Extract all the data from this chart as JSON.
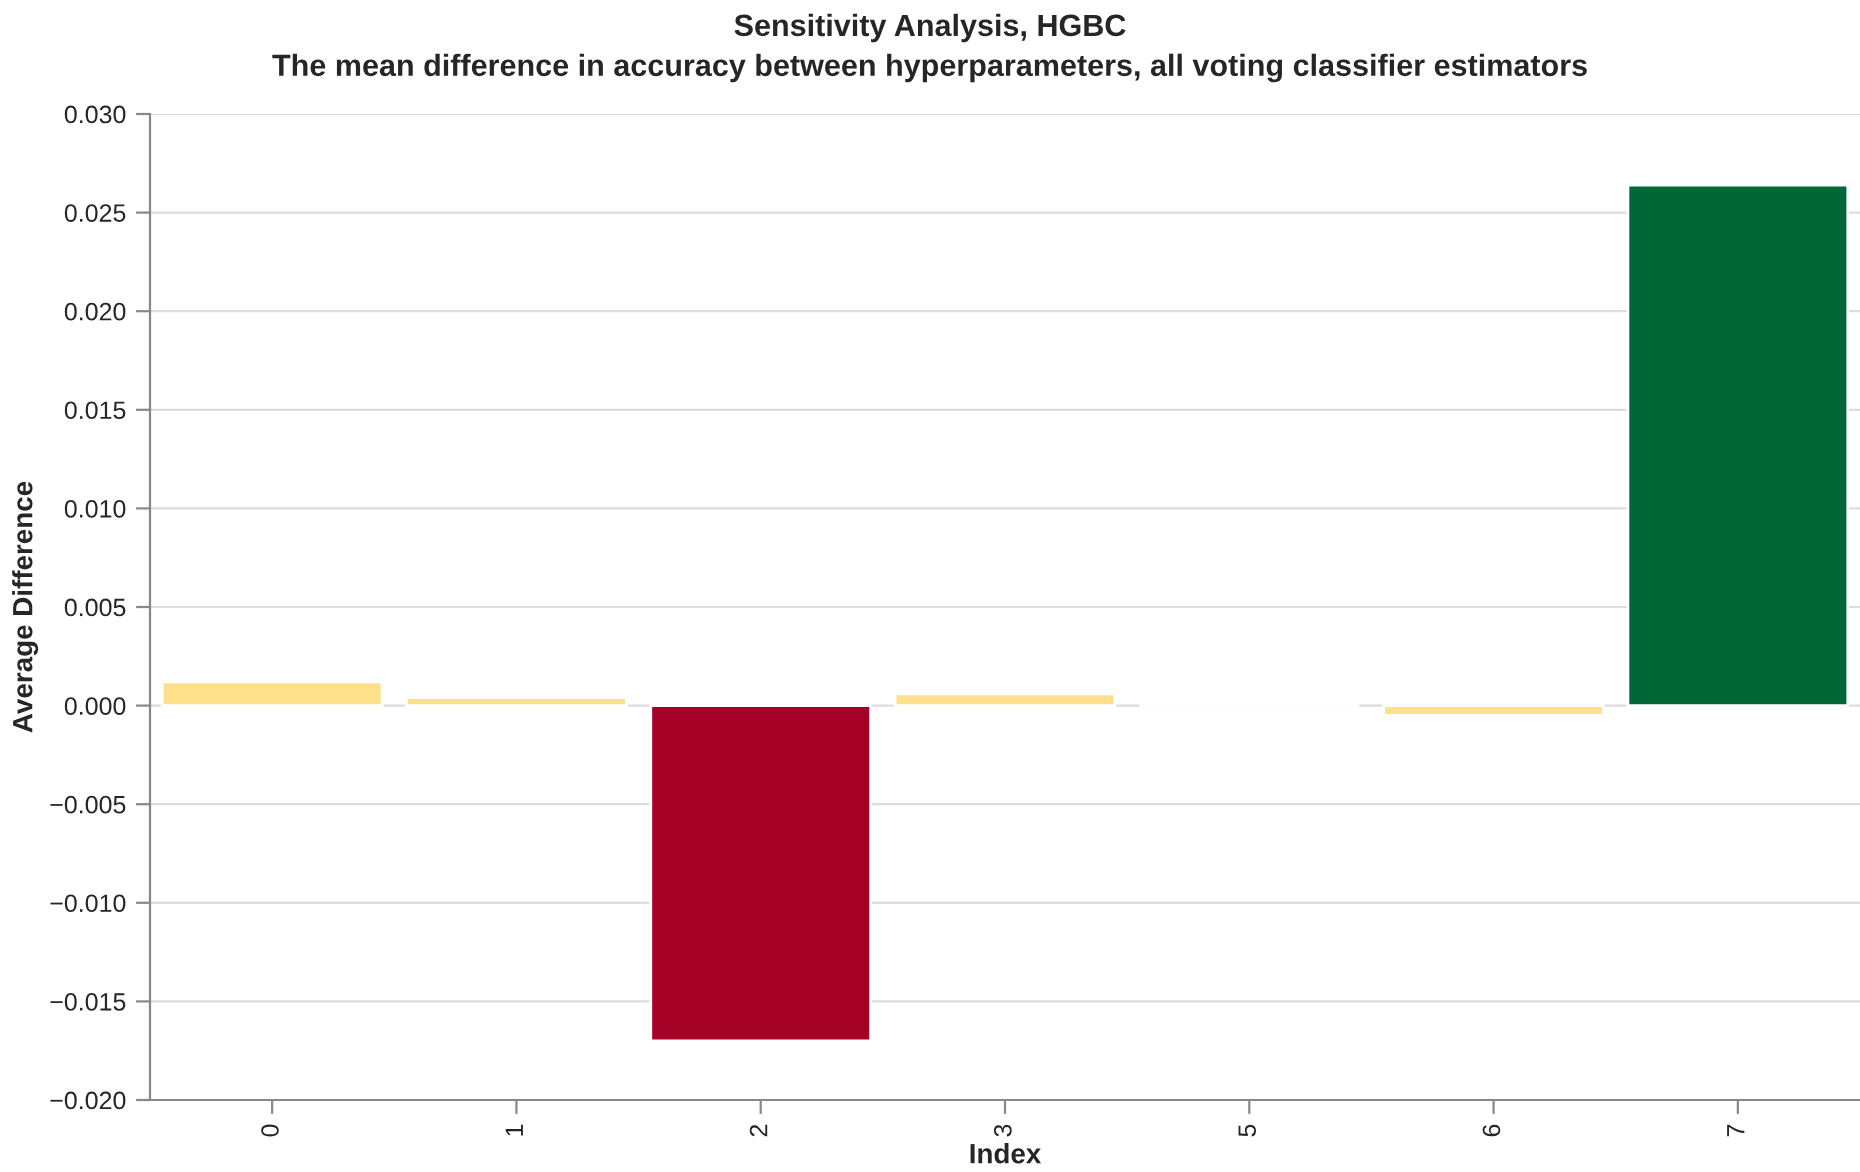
{
  "chart_data": {
    "type": "bar",
    "title": "Sensitivity Analysis, HGBC",
    "subtitle": "The mean difference in accuracy between hyperparameters, all voting classifier estimators",
    "xlabel": "Index",
    "ylabel": "Average Difference",
    "categories": [
      "0",
      "1",
      "2",
      "3",
      "5",
      "6",
      "7"
    ],
    "values": [
      0.0012,
      0.0004,
      -0.017,
      0.0006,
      0.0,
      -0.0005,
      0.0264
    ],
    "colors": [
      "#fee08b",
      "#fee08b",
      "#a50026",
      "#fee08b",
      null,
      "#fee08b",
      "#006837"
    ],
    "ylim": [
      -0.02,
      0.03
    ],
    "yticks": [
      {
        "value": -0.02,
        "label": "−0.020"
      },
      {
        "value": -0.015,
        "label": "−0.015"
      },
      {
        "value": -0.01,
        "label": "−0.010"
      },
      {
        "value": -0.005,
        "label": "−0.005"
      },
      {
        "value": 0,
        "label": "0.000"
      },
      {
        "value": 0.005,
        "label": "0.005"
      },
      {
        "value": 0.01,
        "label": "0.010"
      },
      {
        "value": 0.015,
        "label": "0.015"
      },
      {
        "value": 0.02,
        "label": "0.020"
      },
      {
        "value": 0.025,
        "label": "0.025"
      },
      {
        "value": 0.03,
        "label": "0.030"
      }
    ],
    "grid": "y",
    "legend": false
  }
}
